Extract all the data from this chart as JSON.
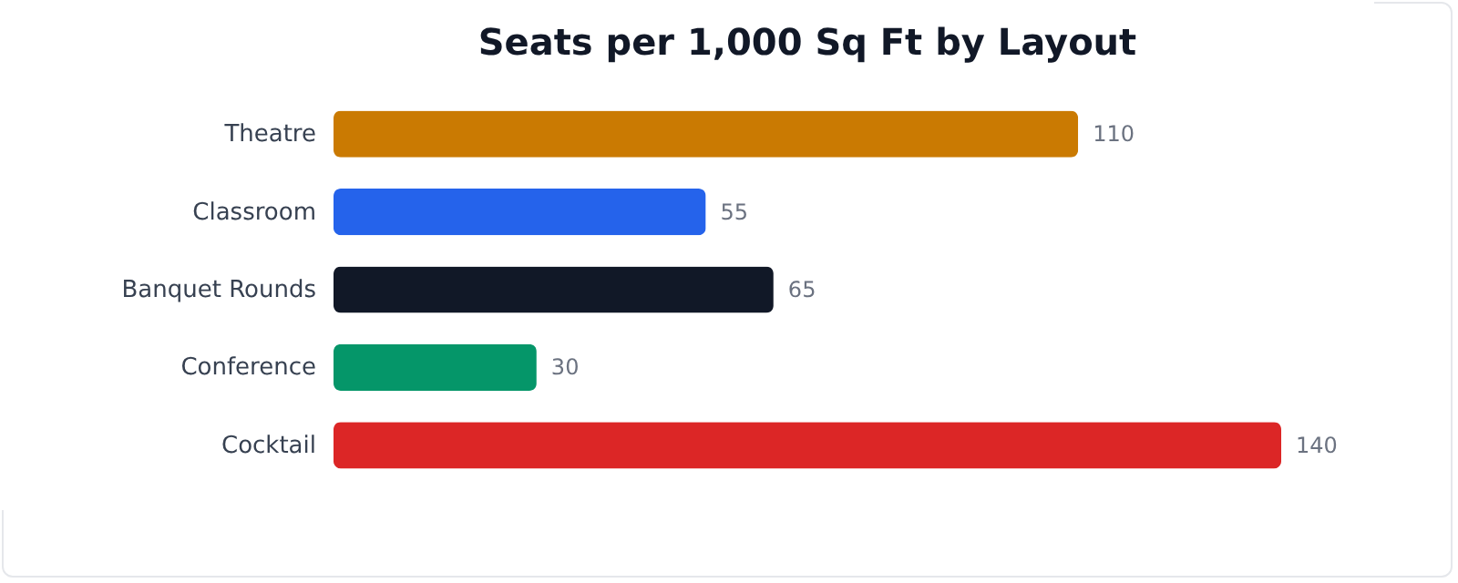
{
  "chart_data": {
    "type": "bar",
    "orientation": "horizontal",
    "title": "Seats per 1,000 Sq Ft by Layout",
    "categories": [
      "Theatre",
      "Classroom",
      "Banquet Rounds",
      "Conference",
      "Cocktail"
    ],
    "values": [
      110,
      55,
      65,
      30,
      140
    ],
    "colors": [
      "#ca7a02",
      "#2563eb",
      "#111827",
      "#059669",
      "#dc2626"
    ],
    "data_labels": true
  }
}
